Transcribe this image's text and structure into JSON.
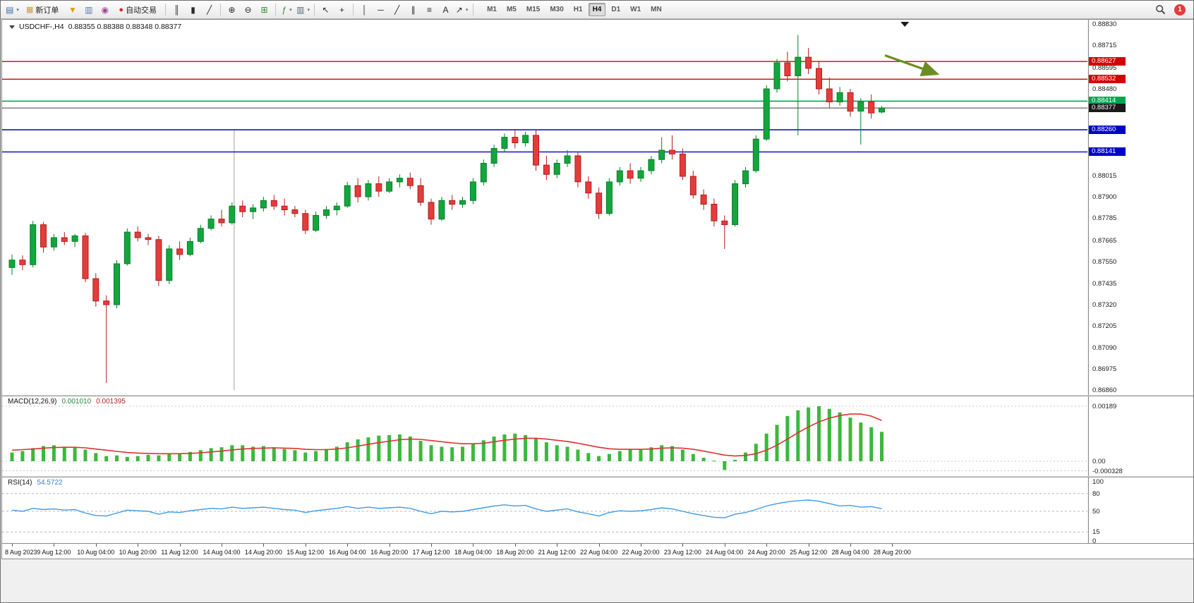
{
  "app": {
    "notification_badge": "1"
  },
  "toolbar": {
    "caret_glyph": "▾",
    "items": [
      {
        "kind": "icon",
        "name": "new-chart-icon",
        "glyph": "▤",
        "color": "#3a6ea5",
        "dropdown": true
      },
      {
        "kind": "button",
        "name": "new-order-button",
        "label": "新订单",
        "glyph": "▦",
        "glyph_color": "#c8a028"
      },
      {
        "kind": "icon",
        "name": "funnel-icon",
        "glyph": "▼",
        "color": "#e0a010"
      },
      {
        "kind": "icon",
        "name": "chart-windows-icon",
        "glyph": "▥",
        "color": "#5b7da3"
      },
      {
        "kind": "icon",
        "name": "profiles-icon",
        "glyph": "◉",
        "color": "#9a4a9a"
      },
      {
        "kind": "button",
        "name": "autotrade-button",
        "label": "自动交易",
        "glyph": "●",
        "glyph_color": "#d42a2a"
      },
      {
        "kind": "sep"
      },
      {
        "kind": "icon",
        "name": "bar-chart-type-icon",
        "glyph": "║",
        "color": "#2a2a2a"
      },
      {
        "kind": "icon",
        "name": "candlestick-type-icon",
        "glyph": "▮",
        "color": "#2a2a2a"
      },
      {
        "kind": "icon",
        "name": "line-chart-type-icon",
        "glyph": "╱",
        "color": "#2a2a2a"
      },
      {
        "kind": "sep"
      },
      {
        "kind": "icon",
        "name": "zoom-in-icon",
        "glyph": "⊕",
        "color": "#2a2a2a"
      },
      {
        "kind": "icon",
        "name": "zoom-out-icon",
        "glyph": "⊖",
        "color": "#2a2a2a"
      },
      {
        "kind": "icon",
        "name": "tile-windows-icon",
        "glyph": "⊞",
        "color": "#2f8f2f"
      },
      {
        "kind": "sep"
      },
      {
        "kind": "icon",
        "name": "indicators-icon",
        "glyph": "ƒ",
        "color": "#2f8f2f",
        "dropdown": true
      },
      {
        "kind": "icon",
        "name": "periods-icon",
        "glyph": "▥",
        "color": "#55657a",
        "dropdown": true
      },
      {
        "kind": "sep"
      },
      {
        "kind": "icon",
        "name": "cursor-icon",
        "glyph": "↖",
        "color": "#2a2a2a"
      },
      {
        "kind": "icon",
        "name": "crosshair-icon",
        "glyph": "+",
        "color": "#2a2a2a"
      },
      {
        "kind": "sep"
      },
      {
        "kind": "icon",
        "name": "vertical-line-icon",
        "glyph": "│",
        "color": "#2a2a2a"
      },
      {
        "kind": "icon",
        "name": "horizontal-line-icon",
        "glyph": "─",
        "color": "#2a2a2a"
      },
      {
        "kind": "icon",
        "name": "trendline-icon",
        "glyph": "╱",
        "color": "#2a2a2a"
      },
      {
        "kind": "icon",
        "name": "equidistant-channel-icon",
        "glyph": "∥",
        "color": "#2a2a2a"
      },
      {
        "kind": "icon",
        "name": "fibonacci-icon",
        "glyph": "≡",
        "color": "#2a2a2a"
      },
      {
        "kind": "icon",
        "name": "text-icon",
        "glyph": "A",
        "color": "#2a2a2a"
      },
      {
        "kind": "icon",
        "name": "arrows-icon",
        "glyph": "↗",
        "color": "#2a2a2a",
        "dropdown": true
      },
      {
        "kind": "sep"
      }
    ],
    "timeframes": {
      "items": [
        "M1",
        "M5",
        "M15",
        "M30",
        "H1",
        "H4",
        "D1",
        "W1",
        "MN"
      ],
      "active": "H4"
    }
  },
  "colors": {
    "bg": "#ffffff",
    "up_fill": "#12a63c",
    "up_border": "#0a7d2a",
    "down_fill": "#e43b3b",
    "down_border": "#b31d1d"
  },
  "chart": {
    "title_symbol": "USDCHF-,H4",
    "title_ohlc": "0.88355 0.88388 0.88348 0.88377",
    "price_axis_ticks": [
      "0.88830",
      "0.88715",
      "0.88595",
      "0.88480",
      "0.88015",
      "0.87900",
      "0.87785",
      "0.87665",
      "0.87550",
      "0.87435",
      "0.87320",
      "0.87205",
      "0.87090",
      "0.86975",
      "0.86860"
    ],
    "levels": [
      {
        "name": "resistance-line-upper",
        "price": 0.88627,
        "label": "0.88627",
        "color": "#d40000",
        "tag": "#d40000",
        "width": 1.4
      },
      {
        "name": "resistance-line-lower",
        "price": 0.88532,
        "label": "0.88532",
        "color": "#d40000",
        "tag": "#d40000",
        "width": 1.4
      },
      {
        "name": "support-line-green",
        "price": 0.88414,
        "label": "0.88414",
        "color": "#00a651",
        "tag": "#00a651",
        "width": 1.6
      },
      {
        "name": "bid-price-line",
        "price": 0.88377,
        "label": "0.88377",
        "color": "#3c3c3c",
        "tag": "#1a1a1a",
        "width": 1
      },
      {
        "name": "support-line-blue-upper",
        "price": 0.8826,
        "label": "0.88260",
        "color": "#0000c8",
        "tag": "#0000c8",
        "width": 1.4
      },
      {
        "name": "support-line-blue-lower",
        "price": 0.88141,
        "label": "0.88141",
        "color": "#0000c8",
        "tag": "#0000c8",
        "width": 1.4
      }
    ],
    "objects": {
      "trend_arrow": {
        "from_index": 83.3,
        "from_price": 0.8866,
        "to_index": 88.3,
        "to_price": 0.8856,
        "color": "#6b8e23"
      },
      "vertical_line": {
        "index": 21.2,
        "from_price": 0.8826,
        "to_price": 0.8686,
        "color": "#a0a0a0"
      }
    },
    "shift_marker_index": 85.2
  },
  "chart_data": {
    "type": "candlestick",
    "symbol": "USDCHF",
    "timeframe": "H4",
    "y_range": [
      0.8685,
      0.8884
    ],
    "candles_per_label": 4,
    "time_labels": [
      "8 Aug 2023",
      "9 Aug 12:00",
      "10 Aug 04:00",
      "10 Aug 20:00",
      "11 Aug 12:00",
      "14 Aug 04:00",
      "14 Aug 20:00",
      "15 Aug 12:00",
      "16 Aug 04:00",
      "16 Aug 20:00",
      "17 Aug 12:00",
      "18 Aug 04:00",
      "18 Aug 20:00",
      "21 Aug 12:00",
      "22 Aug 04:00",
      "22 Aug 20:00",
      "23 Aug 12:00",
      "24 Aug 04:00",
      "24 Aug 20:00",
      "25 Aug 12:00",
      "28 Aug 04:00",
      "28 Aug 20:00"
    ],
    "ohlc": [
      [
        0.8752,
        0.8759,
        0.8748,
        0.8756
      ],
      [
        0.8756,
        0.87585,
        0.87505,
        0.87535
      ],
      [
        0.87535,
        0.8777,
        0.8752,
        0.8775
      ],
      [
        0.8775,
        0.87765,
        0.876,
        0.8763
      ],
      [
        0.8763,
        0.877,
        0.8761,
        0.8768
      ],
      [
        0.8768,
        0.8771,
        0.8764,
        0.8766
      ],
      [
        0.8766,
        0.877,
        0.8763,
        0.8769
      ],
      [
        0.8769,
        0.87705,
        0.8744,
        0.8746
      ],
      [
        0.8746,
        0.8749,
        0.8731,
        0.8734
      ],
      [
        0.8734,
        0.8737,
        0.869,
        0.8732
      ],
      [
        0.8732,
        0.8756,
        0.873,
        0.8754
      ],
      [
        0.8754,
        0.8773,
        0.8753,
        0.8771
      ],
      [
        0.8771,
        0.8774,
        0.8766,
        0.8768
      ],
      [
        0.8768,
        0.877,
        0.8764,
        0.8767
      ],
      [
        0.8767,
        0.8769,
        0.8742,
        0.8745
      ],
      [
        0.8745,
        0.8764,
        0.8743,
        0.8762
      ],
      [
        0.8762,
        0.8766,
        0.8756,
        0.8759
      ],
      [
        0.8759,
        0.8768,
        0.8758,
        0.8766
      ],
      [
        0.8766,
        0.8775,
        0.8765,
        0.8773
      ],
      [
        0.8773,
        0.878,
        0.8772,
        0.8778
      ],
      [
        0.8778,
        0.8783,
        0.8774,
        0.8776
      ],
      [
        0.8776,
        0.8787,
        0.8775,
        0.8785
      ],
      [
        0.8785,
        0.8788,
        0.8779,
        0.8782
      ],
      [
        0.8782,
        0.8786,
        0.8778,
        0.8784
      ],
      [
        0.8784,
        0.879,
        0.8782,
        0.8788
      ],
      [
        0.8788,
        0.8791,
        0.8783,
        0.8785
      ],
      [
        0.8785,
        0.8789,
        0.878,
        0.8783
      ],
      [
        0.8783,
        0.8785,
        0.8779,
        0.8781
      ],
      [
        0.8781,
        0.8783,
        0.877,
        0.8772
      ],
      [
        0.8772,
        0.8782,
        0.8771,
        0.878
      ],
      [
        0.878,
        0.8785,
        0.8778,
        0.8783
      ],
      [
        0.8783,
        0.8787,
        0.878,
        0.8785
      ],
      [
        0.8785,
        0.8798,
        0.8784,
        0.8796
      ],
      [
        0.8796,
        0.88,
        0.8787,
        0.879
      ],
      [
        0.879,
        0.8799,
        0.8788,
        0.8797
      ],
      [
        0.8797,
        0.8801,
        0.879,
        0.8793
      ],
      [
        0.8793,
        0.88,
        0.8792,
        0.8798
      ],
      [
        0.8798,
        0.8802,
        0.8795,
        0.88
      ],
      [
        0.88,
        0.8803,
        0.8794,
        0.8796
      ],
      [
        0.8796,
        0.88,
        0.8785,
        0.8787
      ],
      [
        0.8787,
        0.8789,
        0.8775,
        0.8778
      ],
      [
        0.8778,
        0.879,
        0.8777,
        0.8788
      ],
      [
        0.8788,
        0.8791,
        0.8783,
        0.8786
      ],
      [
        0.8786,
        0.879,
        0.8784,
        0.8788
      ],
      [
        0.8788,
        0.88,
        0.8786,
        0.8798
      ],
      [
        0.8798,
        0.881,
        0.8796,
        0.8808
      ],
      [
        0.8808,
        0.8818,
        0.8806,
        0.8816
      ],
      [
        0.8816,
        0.8824,
        0.8814,
        0.8822
      ],
      [
        0.8822,
        0.8826,
        0.8816,
        0.8819
      ],
      [
        0.8819,
        0.8825,
        0.8817,
        0.8823
      ],
      [
        0.8823,
        0.8826,
        0.8804,
        0.8807
      ],
      [
        0.8807,
        0.8812,
        0.8799,
        0.8802
      ],
      [
        0.8802,
        0.881,
        0.88,
        0.8808
      ],
      [
        0.8808,
        0.8815,
        0.8806,
        0.8812
      ],
      [
        0.8812,
        0.8814,
        0.8795,
        0.8798
      ],
      [
        0.8798,
        0.8801,
        0.8789,
        0.8792
      ],
      [
        0.8792,
        0.8795,
        0.8778,
        0.8781
      ],
      [
        0.8781,
        0.88,
        0.878,
        0.8798
      ],
      [
        0.8798,
        0.8806,
        0.8796,
        0.8804
      ],
      [
        0.8804,
        0.8808,
        0.8797,
        0.88
      ],
      [
        0.88,
        0.8806,
        0.8798,
        0.8804
      ],
      [
        0.8804,
        0.8812,
        0.8802,
        0.881
      ],
      [
        0.881,
        0.8822,
        0.8808,
        0.8815
      ],
      [
        0.8815,
        0.8823,
        0.881,
        0.8813
      ],
      [
        0.8813,
        0.8816,
        0.8799,
        0.8801
      ],
      [
        0.8801,
        0.8804,
        0.8789,
        0.8791
      ],
      [
        0.8791,
        0.8794,
        0.8783,
        0.8786
      ],
      [
        0.8786,
        0.8789,
        0.8774,
        0.8777
      ],
      [
        0.8777,
        0.878,
        0.8762,
        0.8775
      ],
      [
        0.8775,
        0.8799,
        0.8774,
        0.8797
      ],
      [
        0.8797,
        0.8806,
        0.8795,
        0.8804
      ],
      [
        0.8804,
        0.8823,
        0.8803,
        0.8821
      ],
      [
        0.8821,
        0.885,
        0.882,
        0.8848
      ],
      [
        0.8848,
        0.8864,
        0.8846,
        0.8862
      ],
      [
        0.8862,
        0.8868,
        0.8852,
        0.8855
      ],
      [
        0.8855,
        0.8877,
        0.8823,
        0.8865
      ],
      [
        0.8865,
        0.887,
        0.8856,
        0.8859
      ],
      [
        0.8859,
        0.8863,
        0.8845,
        0.8848
      ],
      [
        0.8848,
        0.8854,
        0.8838,
        0.8841
      ],
      [
        0.8841,
        0.8849,
        0.8839,
        0.8846
      ],
      [
        0.8846,
        0.8848,
        0.8833,
        0.8836
      ],
      [
        0.8836,
        0.8843,
        0.8818,
        0.8841
      ],
      [
        0.8841,
        0.8845,
        0.8832,
        0.8835
      ],
      [
        0.88355,
        0.88388,
        0.88348,
        0.88377
      ]
    ],
    "macd": {
      "label": "MACD(12,26,9)",
      "value_main": "0.001010",
      "value_signal": "0.001395",
      "axis_ticks": [
        "0.00189",
        "0.00",
        "-0.000328"
      ],
      "axis_values": [
        0.00189,
        0,
        -0.000328
      ],
      "y_max": 0.00189,
      "y_min": -0.000328,
      "hist_color": "#3cb83c",
      "signal_color": "#e03030",
      "histogram": [
        0.0003,
        0.00035,
        0.00045,
        0.00052,
        0.00055,
        0.0005,
        0.00048,
        0.0004,
        0.00028,
        0.00018,
        0.0002,
        0.00015,
        0.00018,
        0.00022,
        0.0002,
        0.00025,
        0.00028,
        0.00032,
        0.00038,
        0.00045,
        0.00048,
        0.00055,
        0.00055,
        0.0005,
        0.00052,
        0.00048,
        0.00042,
        0.00038,
        0.0003,
        0.00035,
        0.00042,
        0.0005,
        0.00065,
        0.00075,
        0.00082,
        0.00088,
        0.0009,
        0.00092,
        0.00085,
        0.0007,
        0.00055,
        0.0005,
        0.00048,
        0.0005,
        0.0006,
        0.00072,
        0.00085,
        0.00092,
        0.00095,
        0.0009,
        0.0008,
        0.00065,
        0.00055,
        0.0005,
        0.0004,
        0.00028,
        0.00018,
        0.00025,
        0.00035,
        0.0004,
        0.00042,
        0.00048,
        0.00055,
        0.00052,
        0.0004,
        0.00025,
        0.00012,
        2e-05,
        -0.0003,
        5e-05,
        0.0003,
        0.0006,
        0.00095,
        0.00125,
        0.00155,
        0.00175,
        0.00185,
        0.00189,
        0.0018,
        0.00168,
        0.0015,
        0.00133,
        0.00117,
        0.00101
      ],
      "signal": [
        0.00038,
        0.0004,
        0.00042,
        0.00045,
        0.00047,
        0.00048,
        0.00048,
        0.00046,
        0.00042,
        0.00038,
        0.00034,
        0.0003,
        0.00028,
        0.00027,
        0.00026,
        0.00026,
        0.00026,
        0.00027,
        0.00029,
        0.00032,
        0.00035,
        0.00039,
        0.00042,
        0.00044,
        0.00045,
        0.00046,
        0.00045,
        0.00044,
        0.00041,
        0.0004,
        0.0004,
        0.00042,
        0.00046,
        0.00052,
        0.00058,
        0.00064,
        0.00069,
        0.00074,
        0.00076,
        0.00075,
        0.00071,
        0.00067,
        0.00063,
        0.0006,
        0.0006,
        0.00062,
        0.00067,
        0.00072,
        0.00076,
        0.00079,
        0.00079,
        0.00076,
        0.00072,
        0.00068,
        0.00062,
        0.00055,
        0.00048,
        0.00043,
        0.00041,
        0.00041,
        0.00041,
        0.00042,
        0.00045,
        0.00046,
        0.00045,
        0.00041,
        0.00035,
        0.00028,
        0.00021,
        0.00018,
        0.0002,
        0.00026,
        0.00038,
        0.00055,
        0.00076,
        0.00098,
        0.00118,
        0.00135,
        0.00148,
        0.00157,
        0.00162,
        0.00162,
        0.00155,
        0.0014
      ]
    },
    "rsi": {
      "label": "RSI(14)",
      "value": "54.5722",
      "axis_ticks": [
        "100",
        "80",
        "50",
        "15",
        "0"
      ],
      "axis_values": [
        100,
        80,
        50,
        15,
        0
      ],
      "levels": [
        80,
        50,
        15
      ],
      "color": "#3d9be9",
      "values": [
        52,
        50,
        55,
        53,
        54,
        52,
        53,
        47,
        43,
        42,
        47,
        52,
        51,
        50,
        45,
        49,
        48,
        51,
        53,
        55,
        54,
        57,
        55,
        56,
        57,
        55,
        53,
        52,
        48,
        51,
        53,
        55,
        58,
        55,
        57,
        55,
        56,
        57,
        55,
        50,
        46,
        50,
        49,
        50,
        53,
        56,
        59,
        61,
        59,
        60,
        54,
        50,
        52,
        54,
        49,
        46,
        42,
        48,
        51,
        50,
        51,
        53,
        56,
        54,
        50,
        46,
        43,
        40,
        39,
        45,
        48,
        53,
        59,
        63,
        66,
        68,
        69,
        67,
        63,
        59,
        60,
        57,
        58,
        54.57
      ]
    }
  }
}
